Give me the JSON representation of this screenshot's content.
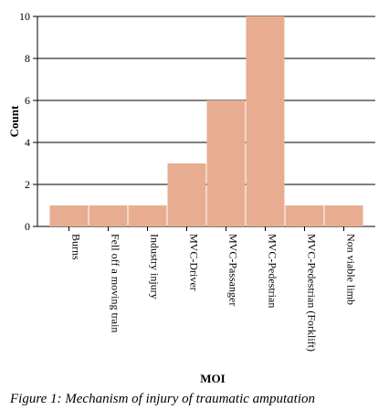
{
  "chart_data": {
    "type": "bar",
    "categories": [
      "Burns",
      "Fell off a moving train",
      "Industry injury",
      "MVC-Driver",
      "MVC-Passanger",
      "MVC-Pedestrian",
      "MVC-Pedestrian (Forklift)",
      "Non viable limb"
    ],
    "values": [
      1,
      1,
      1,
      3,
      6,
      10,
      1,
      1
    ],
    "xlabel": "MOI",
    "ylabel": "Count",
    "ylim": [
      0,
      10
    ],
    "yticks": [
      0,
      2,
      4,
      6,
      8,
      10
    ],
    "grid": true,
    "bar_color": "#e8ad91"
  },
  "caption": "Figure 1: Mechanism of injury of traumatic amputation"
}
